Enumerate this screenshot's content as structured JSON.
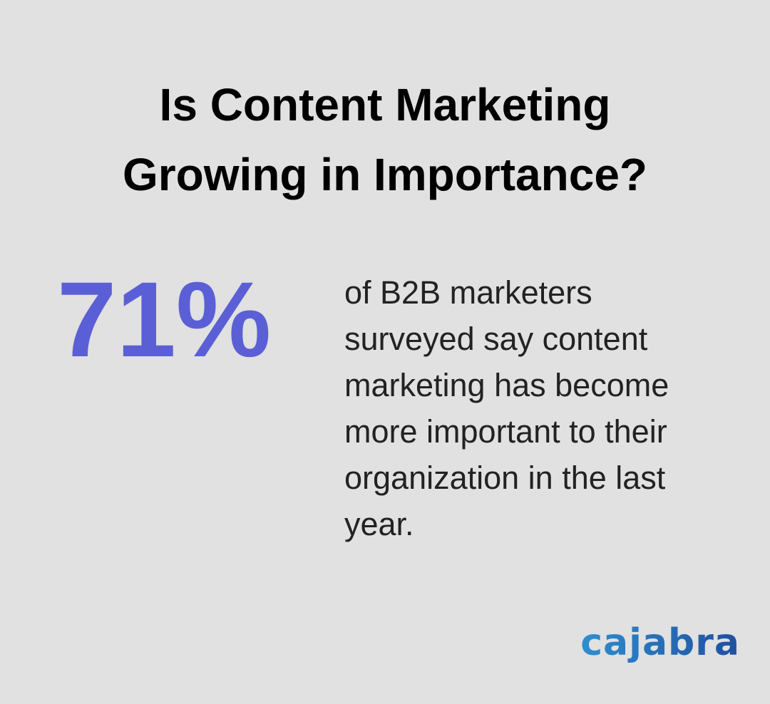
{
  "header": {
    "title": "Is Content Marketing Growing in Importance?"
  },
  "stat": {
    "value": "71%",
    "description_lines": [
      "of B2B marketers",
      "surveyed say content",
      "marketing has become",
      "more important to their",
      "organization in the last",
      "year."
    ]
  },
  "brand": {
    "logo": "cajabra"
  }
}
